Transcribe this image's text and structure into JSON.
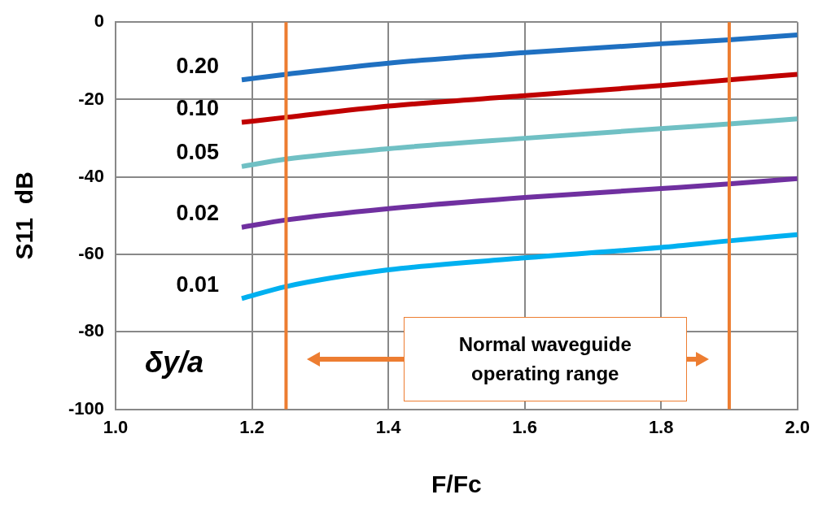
{
  "chart_data": {
    "type": "line",
    "xlabel": "F/Fc",
    "ylabel": "S11  dB",
    "legend_title": "δy/a",
    "xlim": [
      1.0,
      2.0
    ],
    "xticks": [
      {
        "value": 1.0,
        "label": "1.0"
      },
      {
        "value": 1.2,
        "label": "1.2"
      },
      {
        "value": 1.4,
        "label": "1.4"
      },
      {
        "value": 1.6,
        "label": "1.6"
      },
      {
        "value": 1.8,
        "label": "1.8"
      },
      {
        "value": 2.0,
        "label": "2.0"
      }
    ],
    "ylim": [
      -100,
      0
    ],
    "yticks": [
      -100,
      -80,
      -60,
      -40,
      -20,
      0
    ],
    "grid": true,
    "marker": "none",
    "x": [
      1.185,
      1.25,
      1.4,
      1.6,
      1.8,
      1.9,
      2.0
    ],
    "series": [
      {
        "name": "0.20",
        "color": "#1f70c1",
        "values": [
          -14.9,
          -13.5,
          -10.6,
          -7.9,
          -5.6,
          -4.6,
          -3.3
        ]
      },
      {
        "name": "0.10",
        "color": "#c00000",
        "values": [
          -25.9,
          -24.6,
          -21.7,
          -19.0,
          -16.4,
          -14.9,
          -13.5
        ]
      },
      {
        "name": "0.05",
        "color": "#70c0c4",
        "values": [
          -37.3,
          -35.4,
          -32.7,
          -30.0,
          -27.5,
          -26.3,
          -25.0
        ]
      },
      {
        "name": "0.02",
        "color": "#7030a0",
        "values": [
          -53.0,
          -51.1,
          -48.2,
          -45.3,
          -43.0,
          -41.8,
          -40.4
        ]
      },
      {
        "name": "0.01",
        "color": "#00b0f0",
        "values": [
          -71.4,
          -68.3,
          -64.0,
          -60.9,
          -58.2,
          -56.5,
          -54.9
        ]
      }
    ],
    "ref_lines": [
      {
        "axis": "x",
        "value": 1.25,
        "color": "#ed7d31"
      },
      {
        "axis": "x",
        "value": 1.9,
        "color": "#ed7d31"
      }
    ],
    "annotations": [
      "Normal waveguide operating range"
    ]
  }
}
